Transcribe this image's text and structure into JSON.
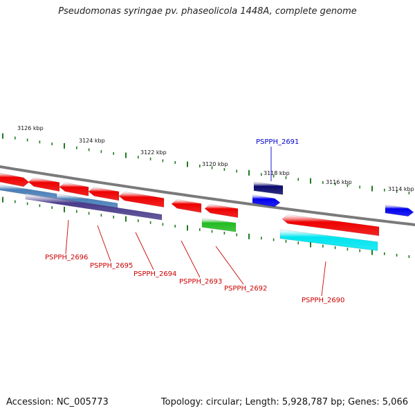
{
  "title": "Pseudomonas syringae pv. phaseolicola 1448A, complete genome",
  "footer": {
    "accession": "Accession: NC_005773",
    "summary": "Topology: circular; Length: 5,928,787 bp; Genes: 5,066"
  },
  "colors": {
    "backbone": "#7a7a7a",
    "tick": "#1e7a1e",
    "gene_forward": "#0000ee",
    "gene_forward_dark": "#0a0a6e",
    "gene_reverse": "#ee0000",
    "gene_green": "#22bb22",
    "gene_cyan": "#00e5f0",
    "gene_purple": "#4a3c8c",
    "gene_steel": "#4a7fb8",
    "label_red": "#cc0000",
    "label_blue": "#0000cc"
  },
  "scale_labels": [
    "3126 kbp",
    "3124 kbp",
    "3122 kbp",
    "3120 kbp",
    "3118 kbp",
    "3116 kbp",
    "3114 kbp"
  ],
  "gene_labels": [
    {
      "text": "PSPPH_2691",
      "color": "label_blue"
    },
    {
      "text": "PSPPH_2696",
      "color": "label_red"
    },
    {
      "text": "PSPPH_2695",
      "color": "label_red"
    },
    {
      "text": "PSPPH_2694",
      "color": "label_red"
    },
    {
      "text": "PSPPH_2693",
      "color": "label_red"
    },
    {
      "text": "PSPPH_2692",
      "color": "label_red"
    },
    {
      "text": "PSPPH_2690",
      "color": "label_red"
    }
  ]
}
